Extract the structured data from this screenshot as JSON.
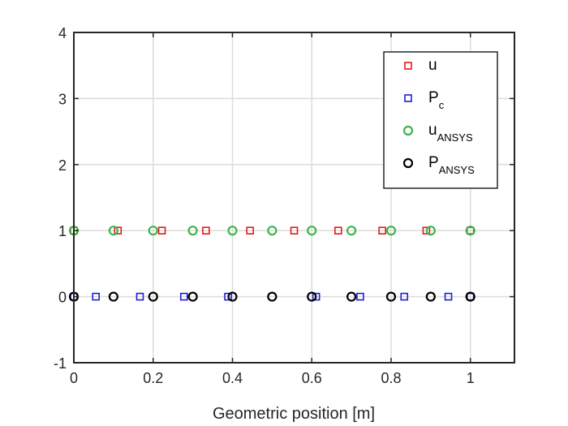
{
  "chart_data": {
    "type": "scatter",
    "xlabel": "Geometric position [m]",
    "ylabel": "",
    "xlim": [
      0,
      1.1111
    ],
    "ylim": [
      -1,
      4
    ],
    "xticks": [
      0,
      0.2,
      0.4,
      0.6,
      0.8,
      1
    ],
    "xtick_labels": [
      "0",
      "0.2",
      "0.4",
      "0.6",
      "0.8",
      "1"
    ],
    "yticks": [
      -1,
      0,
      1,
      2,
      3,
      4
    ],
    "ytick_labels": [
      "-1",
      "0",
      "1",
      "2",
      "3",
      "4"
    ],
    "grid": true,
    "legend_position": "top-right",
    "series": [
      {
        "name": "u",
        "name_base": "u",
        "name_sub": "",
        "marker": "square",
        "color": "#e31a1c",
        "x": [
          0,
          0.1111,
          0.2222,
          0.3333,
          0.4444,
          0.5556,
          0.6667,
          0.7778,
          0.8889,
          1
        ],
        "y": [
          1,
          1,
          1,
          1,
          1,
          1,
          1,
          1,
          1,
          1
        ]
      },
      {
        "name": "Pc",
        "name_base": "P",
        "name_sub": "c",
        "marker": "square",
        "color": "#1f1fd6",
        "x": [
          0,
          0.0556,
          0.1667,
          0.2778,
          0.3889,
          0.6111,
          0.7222,
          0.8333,
          0.9444,
          1
        ],
        "y": [
          0,
          0,
          0,
          0,
          0,
          0,
          0,
          0,
          0,
          0
        ]
      },
      {
        "name": "uANSYS",
        "name_base": "u",
        "name_sub": "ANSYS",
        "marker": "circle",
        "color": "#3cb44b",
        "x": [
          0,
          0.1,
          0.2,
          0.3,
          0.4,
          0.5,
          0.6,
          0.7,
          0.8,
          0.9,
          1
        ],
        "y": [
          1,
          1,
          1,
          1,
          1,
          1,
          1,
          1,
          1,
          1,
          1
        ]
      },
      {
        "name": "PANSYS",
        "name_base": "P",
        "name_sub": "ANSYS",
        "marker": "circle",
        "color": "#000000",
        "x": [
          0,
          0.1,
          0.2,
          0.3,
          0.4,
          0.5,
          0.6,
          0.7,
          0.8,
          0.9,
          1
        ],
        "y": [
          0,
          0,
          0,
          0,
          0,
          0,
          0,
          0,
          0,
          0,
          0
        ]
      }
    ]
  }
}
